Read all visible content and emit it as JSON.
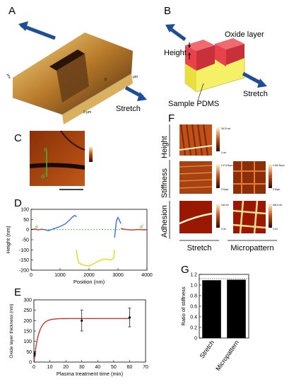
{
  "panels": {
    "A": {
      "letter": "A",
      "stretch_label": "Stretch",
      "axis_labels": [
        "0 μm",
        "μm",
        "μm"
      ],
      "axis_tick": "0"
    },
    "B": {
      "letter": "B",
      "height_label": "Height",
      "oxide_label": "Oxide layer",
      "pdms_label": "Sample PDMS",
      "stretch_label": "Stretch"
    },
    "C": {
      "letter": "C",
      "marker_top": "a",
      "marker_bottom": "a'"
    },
    "D": {
      "letter": "D",
      "marker_left": "a",
      "marker_right": "a'"
    },
    "E": {
      "letter": "E"
    },
    "F": {
      "letter": "F",
      "row_labels": [
        "Height",
        "Stiffness",
        "Adhesion"
      ],
      "col_labels": [
        "Stretch",
        "Micropattern"
      ],
      "scale_top_labels": [
        "38.19 nm",
        "0.174 N/μm",
        "0.180 N/μm",
        "146 nm",
        "626.6 nN"
      ],
      "scale_bottom_labels": [
        "0 nm",
        "0 N/μm",
        "0 N/μm",
        "0 nN",
        "0 nN"
      ]
    },
    "G": {
      "letter": "G"
    }
  },
  "colors": {
    "height_profile_blue": "#3a6fd8",
    "height_profile_yellow": "#e8d81a",
    "height_profile_red": "#c0392b",
    "baseline_green": "#3cbf3c",
    "fit_red": "#c0392b",
    "afm_dark": "#5a1a05",
    "afm_light": "#f2d27a",
    "oxide_red": "#e8424c",
    "pdms_yellow": "#f6f066",
    "arrow_blue": "#1f4e96"
  },
  "chart_data": [
    {
      "id": "D",
      "type": "line",
      "title": "",
      "xlabel": "Position (nm)",
      "ylabel": "Height (nm)",
      "xlim": [
        0,
        4000
      ],
      "ylim": [
        -200,
        100
      ],
      "xticks": [
        "0",
        "1000",
        "2000",
        "3000",
        "4000"
      ],
      "yticks": [
        "100",
        "50",
        "0",
        "-50",
        "-100",
        "-150",
        "-200"
      ],
      "grid": false,
      "baseline_y": 0,
      "series": [
        {
          "x": [
            0,
            150,
            250,
            350,
            450
          ],
          "y": [
            0,
            3,
            -2,
            2,
            0
          ]
        },
        {
          "x": [
            450,
            600,
            800,
            1000,
            1200,
            1350,
            1450,
            1520,
            1560
          ],
          "y": [
            0,
            -5,
            5,
            15,
            30,
            50,
            65,
            70,
            62
          ]
        },
        {
          "x": [
            1560,
            1600,
            1650,
            1800,
            2000,
            2200,
            2400,
            2600,
            2750,
            2850,
            2880
          ],
          "y": [
            -100,
            -140,
            -165,
            -175,
            -180,
            -165,
            -150,
            -145,
            -150,
            -140,
            -100
          ]
        },
        {
          "x": [
            2880,
            2920,
            2950,
            3000,
            3100
          ],
          "y": [
            -40,
            10,
            45,
            60,
            30
          ]
        },
        {
          "x": [
            3100,
            3300,
            3500,
            3700,
            3900,
            4000
          ],
          "y": [
            5,
            0,
            -2,
            1,
            -1,
            0
          ]
        }
      ]
    },
    {
      "id": "E",
      "type": "scatter",
      "title": "",
      "xlabel": "Plasma treatment time (min)",
      "ylabel": "Oxide layer thickness (nm)",
      "xlim": [
        0,
        70
      ],
      "ylim": [
        0,
        300
      ],
      "xticks": [
        "0",
        "10",
        "20",
        "30",
        "40",
        "50",
        "60",
        "70"
      ],
      "yticks": [
        "0",
        "50",
        "100",
        "150",
        "200",
        "250",
        "300"
      ],
      "grid": false,
      "points": [
        {
          "x": 0.5,
          "y": 40,
          "err": 10
        },
        {
          "x": 30,
          "y": 200,
          "err": 50
        },
        {
          "x": 60,
          "y": 215,
          "err": 45
        }
      ],
      "fit": {
        "plateau": 210,
        "rate": 0.35
      }
    },
    {
      "id": "G",
      "type": "bar",
      "title": "",
      "xlabel": "",
      "ylabel": "Ratio of stiffness",
      "categories": [
        "Stretch",
        "Micropattern"
      ],
      "values": [
        1.09,
        1.1
      ],
      "ylim": [
        0,
        1.2
      ],
      "yticks": [
        "0",
        "0.2",
        "0.4",
        "0.6",
        "0.8",
        "1.0",
        "1.2"
      ],
      "reference_line": 1.12
    }
  ]
}
